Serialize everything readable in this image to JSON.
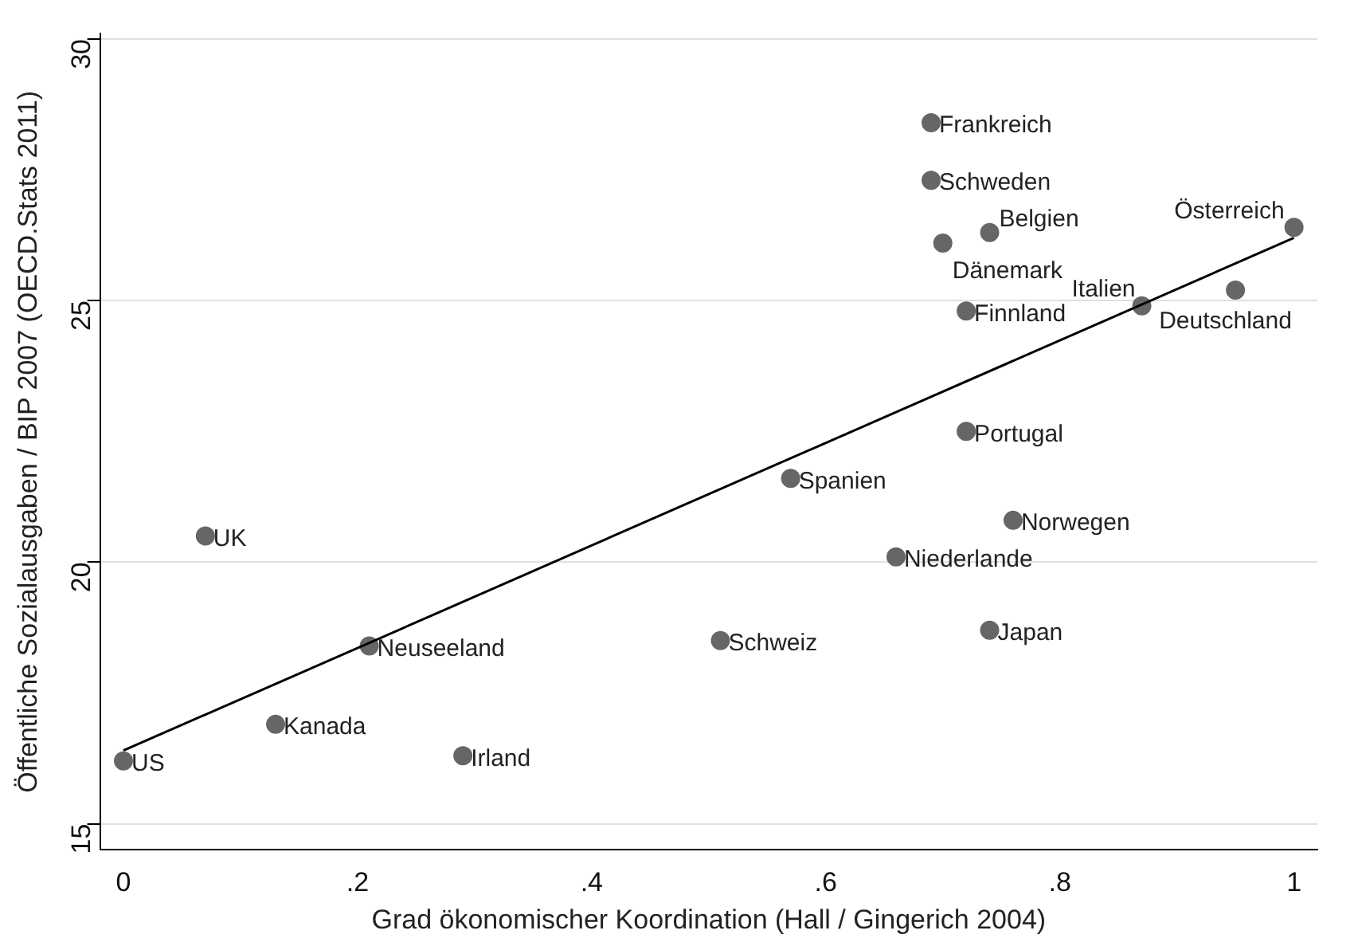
{
  "chart_data": {
    "type": "scatter",
    "xlabel": "Grad ökonomischer Koordination (Hall / Gingerich 2004)",
    "ylabel": "Öffentliche Sozialausgaben / BIP 2007 (OECD.Stats 2011)",
    "xlim": [
      -0.02,
      1.02
    ],
    "ylim": [
      14.5,
      30.1
    ],
    "xticks": [
      0,
      {
        "value": 0.2,
        "label": ".2"
      },
      {
        "value": 0.4,
        "label": ".4"
      },
      {
        "value": 0.6,
        "label": ".6"
      },
      {
        "value": 0.8,
        "label": ".8"
      },
      1
    ],
    "yticks": [
      15,
      20,
      25,
      30
    ],
    "grid": "y",
    "legend": false,
    "marker": "circle",
    "series": [
      {
        "type": "scatter",
        "color": "#666666",
        "x": [
          0,
          0.07,
          0.21,
          0.13,
          0.29,
          0.51,
          0.57,
          0.66,
          0.72,
          0.76,
          0.74,
          0.69,
          0.69,
          0.74,
          0.7,
          0.72,
          0.87,
          0.95,
          1.0
        ],
        "values": [
          16.2,
          20.5,
          18.4,
          16.9,
          16.3,
          18.5,
          21.6,
          20.1,
          22.5,
          20.8,
          18.7,
          28.4,
          27.3,
          26.3,
          26.1,
          24.8,
          24.9,
          25.2,
          26.4
        ],
        "value_labels": [
          "US",
          "UK",
          "Neuseeland",
          "Kanada",
          "Irland",
          "Schweiz",
          "Spanien",
          "Niederlande",
          "Portugal",
          "Norwegen",
          "Japan",
          "Frankreich",
          "Schweden",
          "Belgien",
          "Dänemark",
          "Finnland",
          "Italien",
          "Deutschland",
          "Österreich"
        ]
      },
      {
        "type": "line",
        "color": "#000000",
        "x": [
          0,
          1
        ],
        "values": [
          16.4,
          26.2
        ],
        "marker": "none"
      }
    ]
  }
}
